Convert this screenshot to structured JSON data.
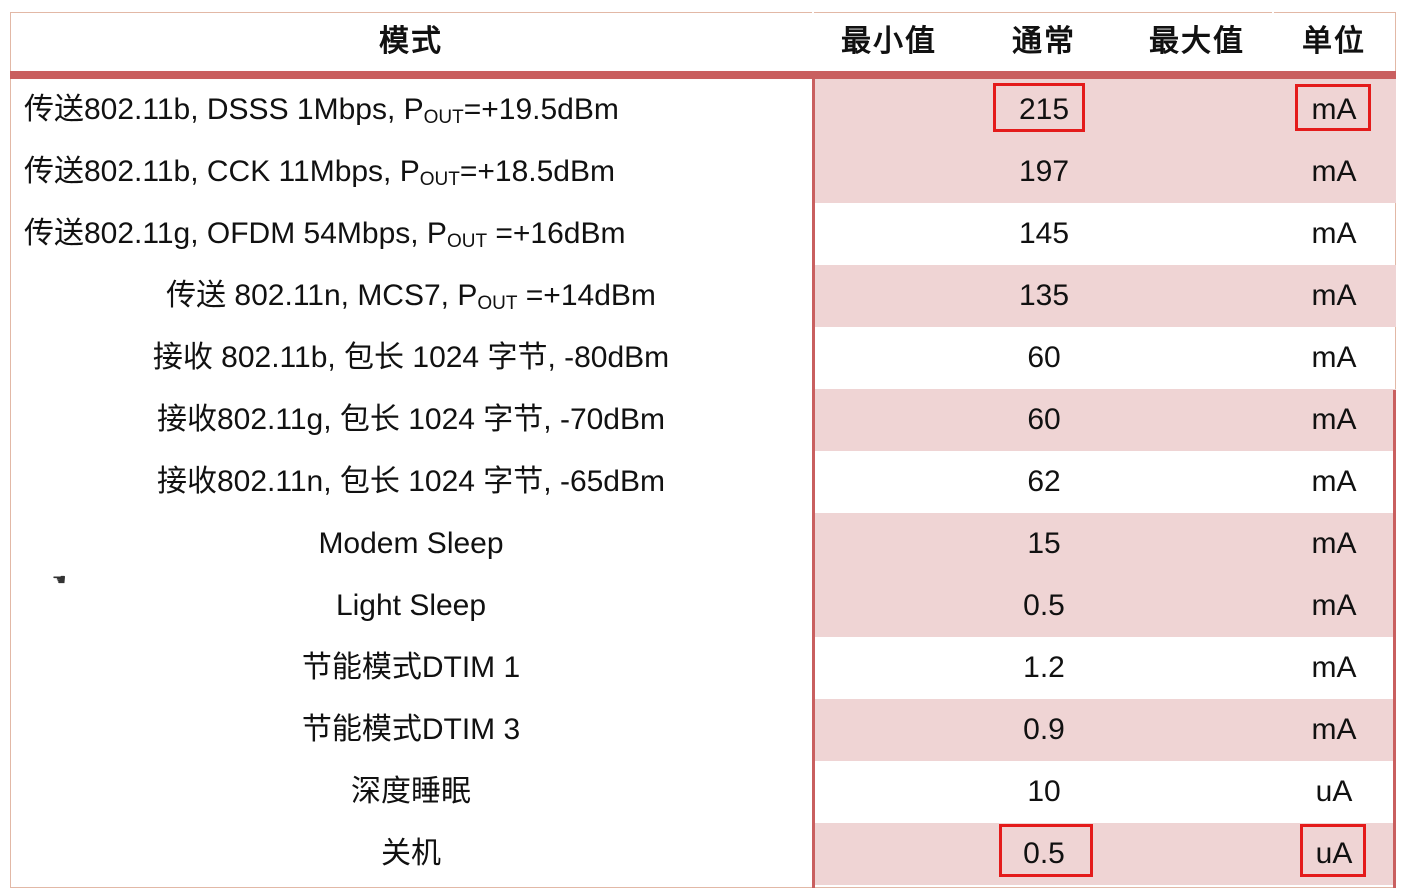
{
  "table": {
    "headers": {
      "mode": "模式",
      "min": "最小值",
      "typical": "通常",
      "max": "最大值",
      "unit": "单位"
    },
    "rows": [
      {
        "mode_pre": "传送802.11b, DSSS 1Mbps, P",
        "mode_sub": "OUT",
        "mode_post": "=+19.5dBm",
        "typical": "215",
        "unit": "mA"
      },
      {
        "mode_pre": "传送802.11b, CCK 11Mbps, P",
        "mode_sub": "OUT",
        "mode_post": "=+18.5dBm",
        "typical": "197",
        "unit": "mA"
      },
      {
        "mode_pre": "传送802.11g, OFDM 54Mbps, P",
        "mode_sub": "OUT",
        "mode_post": " =+16dBm",
        "typical": "145",
        "unit": "mA"
      },
      {
        "mode_pre": "传送 802.11n, MCS7, P",
        "mode_sub": "OUT",
        "mode_post": " =+14dBm",
        "typical": "135",
        "unit": "mA"
      },
      {
        "mode": "接收 802.11b, 包长 1024 字节, -80dBm",
        "typical": "60",
        "unit": "mA"
      },
      {
        "mode": "接收802.11g, 包长 1024 字节, -70dBm",
        "typical": "60",
        "unit": "mA"
      },
      {
        "mode": "接收802.11n, 包长 1024 字节, -65dBm",
        "typical": "62",
        "unit": "mA"
      },
      {
        "mode": "Modem Sleep",
        "typical": "15",
        "unit": "mA"
      },
      {
        "mode": "Light Sleep",
        "typical": "0.5",
        "unit": "mA"
      },
      {
        "mode": "节能模式DTIM 1",
        "typical": "1.2",
        "unit": "mA"
      },
      {
        "mode": "节能模式DTIM 3",
        "typical": "0.9",
        "unit": "mA"
      },
      {
        "mode": "深度睡眠",
        "typical": "10",
        "unit": "uA"
      },
      {
        "mode": "关机",
        "typical": "0.5",
        "unit": "uA"
      }
    ]
  },
  "colors": {
    "accent": "#c95f5f",
    "row_shade": "#efd4d4",
    "highlight_box": "#e41b1b"
  },
  "icons": {
    "cursor": "hand-cursor-icon"
  }
}
